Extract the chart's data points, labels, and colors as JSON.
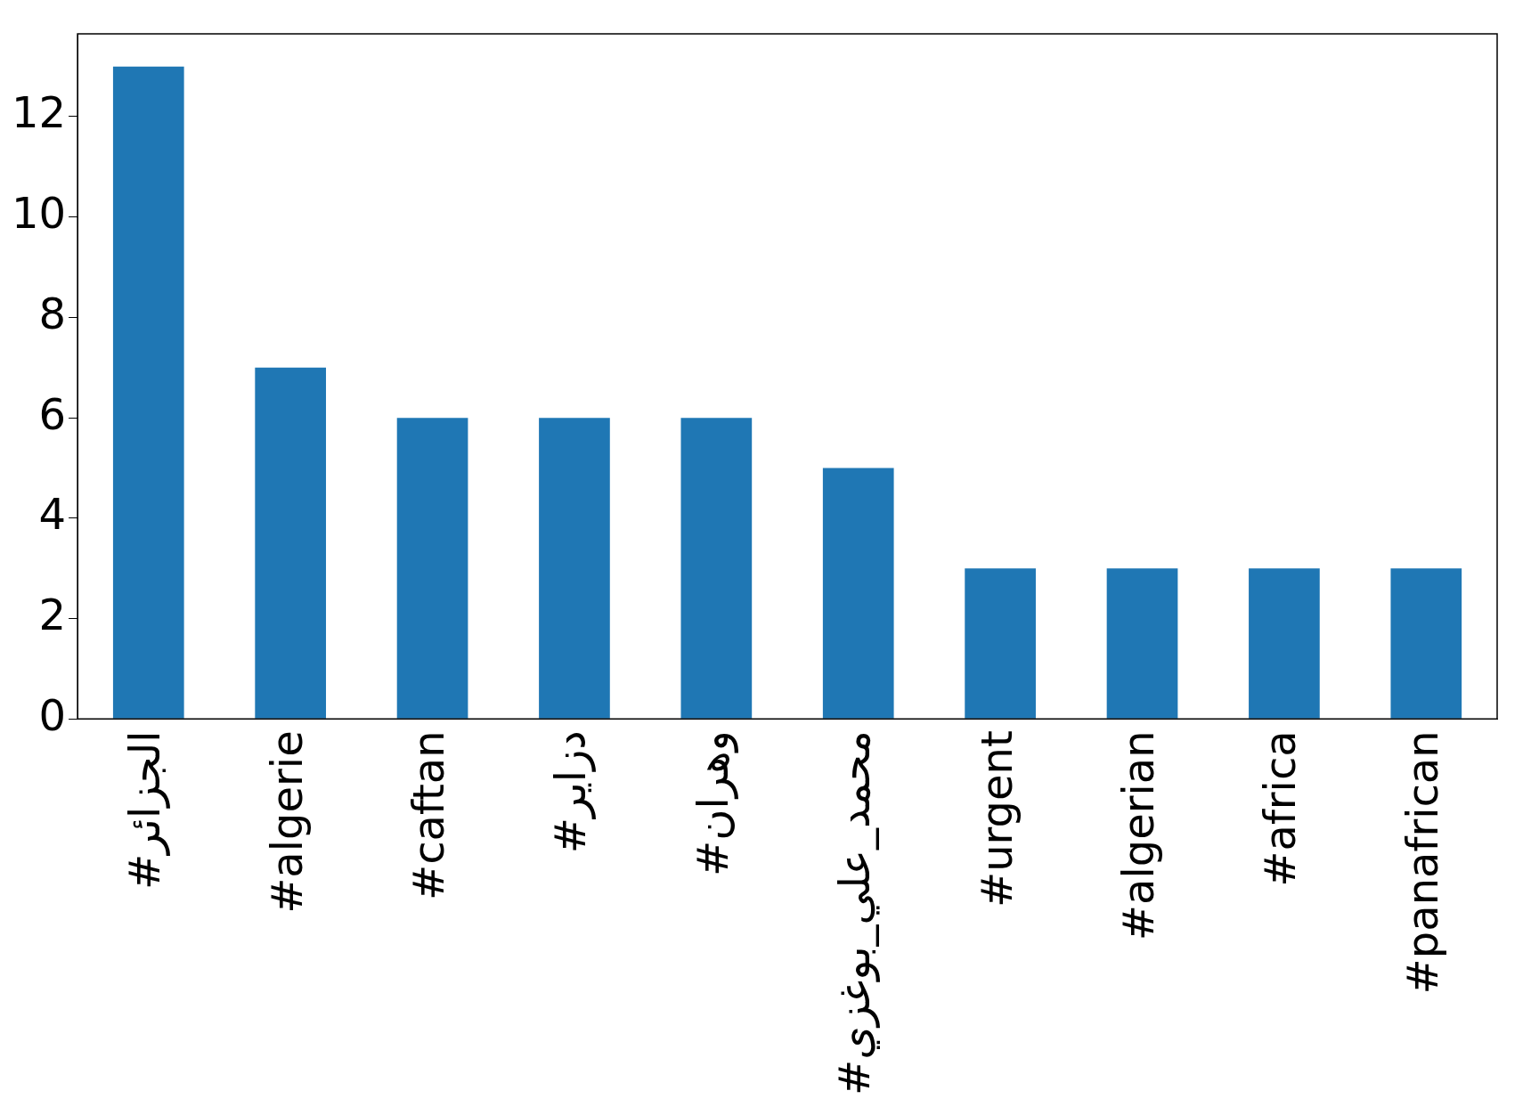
{
  "chart_data": {
    "type": "bar",
    "categories": [
      "#الجزائر",
      "#algerie",
      "#caftan",
      "#دزاير",
      "#وهران",
      "#محمد_علي_بوغزي",
      "#urgent",
      "#algerian",
      "#africa",
      "#panafrican"
    ],
    "values": [
      13,
      7,
      6,
      6,
      6,
      5,
      3,
      3,
      3,
      3
    ],
    "color": "#1f77b4",
    "ylim": [
      0,
      13.65
    ],
    "yticks": [
      0,
      2,
      4,
      6,
      8,
      10,
      12
    ],
    "grid": false,
    "legend": false
  }
}
